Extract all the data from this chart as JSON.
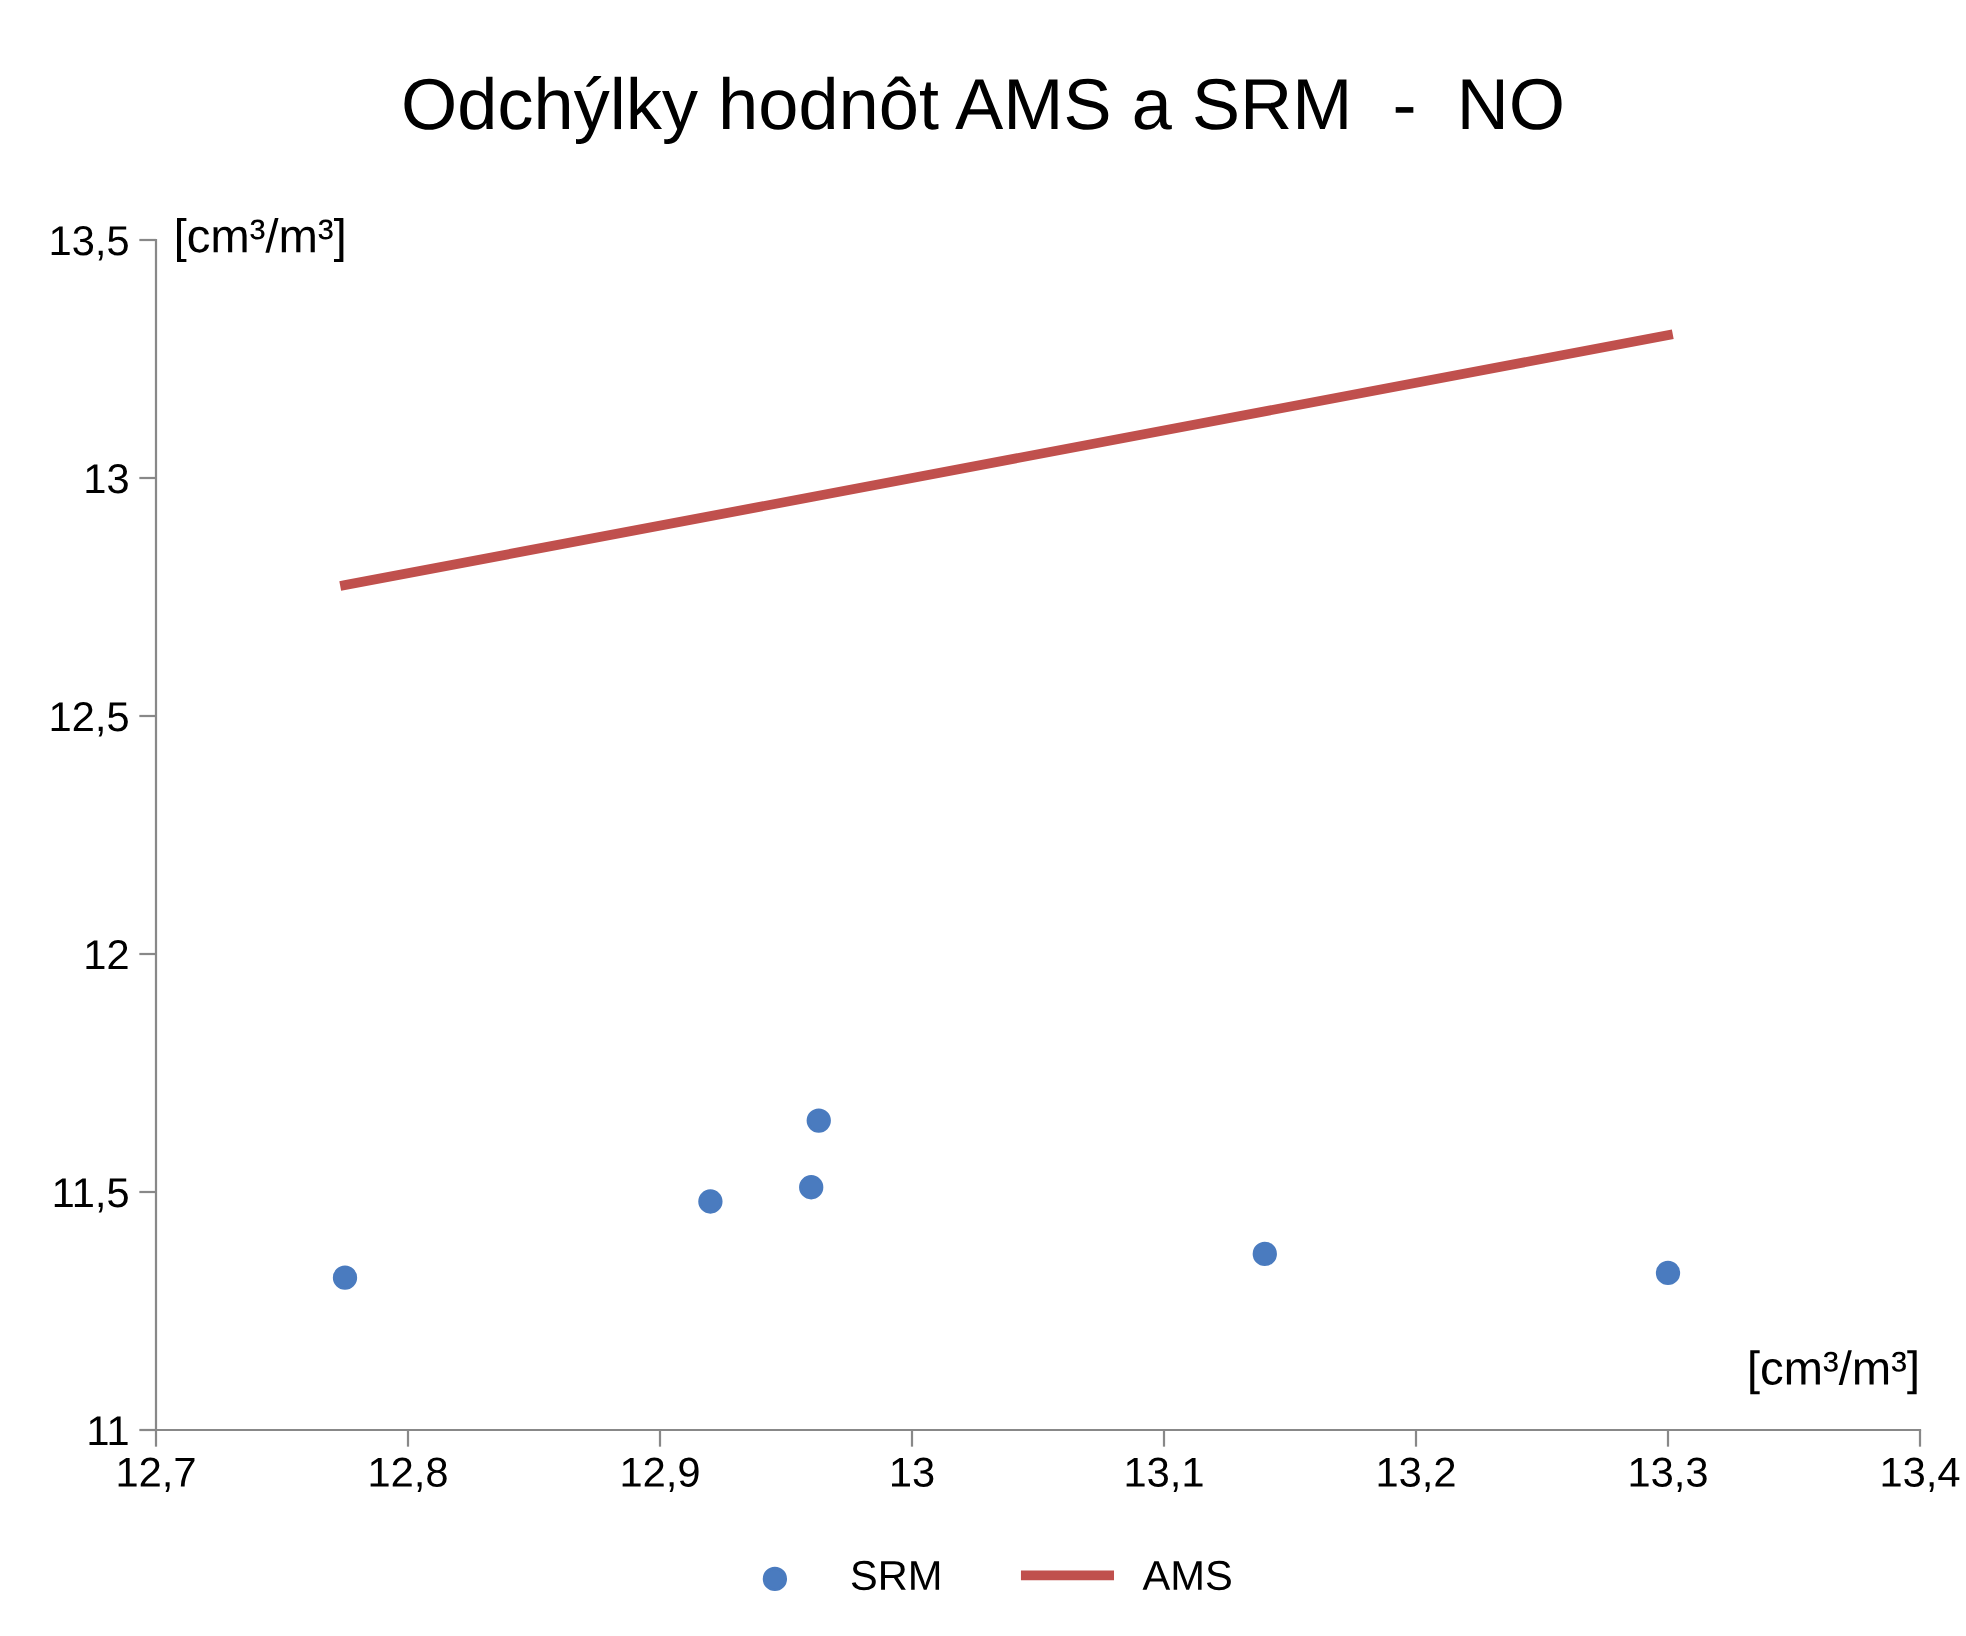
{
  "chart_data": {
    "type": "scatter",
    "title": "Odchýlky hodnôt AMS a SRM  -  NO",
    "xlabel": "[cm³/m³]",
    "ylabel": "[cm³/m³]",
    "series": [
      {
        "name": "SRM",
        "color": "#4a7bbf",
        "x": [
          12.775,
          12.92,
          12.96,
          12.963,
          13.14,
          13.3
        ],
        "values": [
          11.32,
          11.48,
          11.51,
          11.65,
          11.37,
          11.33
        ],
        "marker": "circle"
      },
      {
        "name": "AMS",
        "type": "line",
        "color": "#c0504d",
        "x": [
          12.775,
          13.3
        ],
        "values": [
          12.775,
          13.3
        ],
        "marker": "none",
        "line_style": "solid"
      }
    ],
    "xlim": [
      12.7,
      13.4
    ],
    "ylim": [
      11,
      13.5
    ],
    "xticks": [
      {
        "value": 12.7,
        "label": "12,7"
      },
      {
        "value": 12.8,
        "label": "12,8"
      },
      {
        "value": 12.9,
        "label": "12,9"
      },
      13,
      {
        "value": 13.1,
        "label": "13,1"
      },
      {
        "value": 13.2,
        "label": "13,2"
      },
      {
        "value": 13.3,
        "label": "13,3"
      },
      {
        "value": 13.4,
        "label": "13,4"
      }
    ],
    "yticks": [
      11,
      {
        "value": 11.5,
        "label": "11,5"
      },
      12,
      {
        "value": 12.5,
        "label": "12,5"
      },
      13,
      {
        "value": 13.5,
        "label": "13,5"
      }
    ],
    "grid": false,
    "legend": "bottom"
  }
}
